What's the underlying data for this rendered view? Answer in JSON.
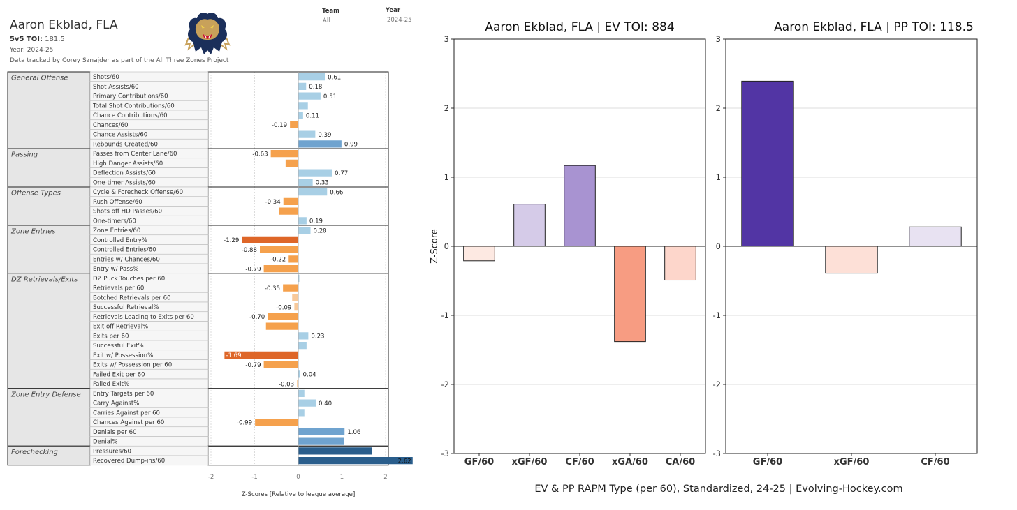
{
  "header": {
    "player_name": "Aaron Ekblad, FLA",
    "toi_label": "5v5 TOI:",
    "toi_value": "181.5",
    "year_line": "Year: 2024-25",
    "tracked_line": "Data tracked by Corey Sznajder as part of the All Three Zones Project",
    "team_filter_label": "Team",
    "team_filter_value": "All",
    "year_filter_label": "Year",
    "year_filter_value": "2024-25",
    "logo_icon": "florida-panthers-logo-icon"
  },
  "left_chart": {
    "type": "bar",
    "orientation": "horizontal",
    "xlabel": "Z-Scores [Relative to league average]",
    "xlim": [
      -2,
      2
    ],
    "xticks": [
      "-2",
      "-1",
      "0",
      "1",
      "2"
    ],
    "colors": {
      "positive_light": "#a8cfe5",
      "positive_mid": "#6fa3cf",
      "positive_dark": "#2a5e8c",
      "negative_light": "#f8c99a",
      "negative_mid": "#f5a14d",
      "negative_dark": "#de6628"
    },
    "groups": [
      {
        "name": "General Offense",
        "rows": [
          {
            "metric": "Shots/60",
            "value": 0.61,
            "label": "0.61"
          },
          {
            "metric": "Shot Assists/60",
            "value": 0.18,
            "label": "0.18"
          },
          {
            "metric": "Primary Contributions/60",
            "value": 0.51,
            "label": "0.51"
          },
          {
            "metric": "Total Shot Contributions/60",
            "value": 0.22,
            "label": ""
          },
          {
            "metric": "Chance Contributions/60",
            "value": 0.11,
            "label": "0.11"
          },
          {
            "metric": "Chances/60",
            "value": -0.19,
            "label": "-0.19"
          },
          {
            "metric": "Chance Assists/60",
            "value": 0.39,
            "label": "0.39"
          },
          {
            "metric": "Rebounds Created/60",
            "value": 0.99,
            "label": "0.99"
          }
        ]
      },
      {
        "name": "Passing",
        "rows": [
          {
            "metric": "Passes from Center Lane/60",
            "value": -0.63,
            "label": "-0.63"
          },
          {
            "metric": "High Danger Assists/60",
            "value": -0.29,
            "label": ""
          },
          {
            "metric": "Deflection Assists/60",
            "value": 0.77,
            "label": "0.77"
          },
          {
            "metric": "One-timer Assists/60",
            "value": 0.33,
            "label": "0.33"
          }
        ]
      },
      {
        "name": "Offense Types",
        "rows": [
          {
            "metric": "Cycle & Forecheck Offense/60",
            "value": 0.66,
            "label": "0.66"
          },
          {
            "metric": "Rush Offense/60",
            "value": -0.34,
            "label": "-0.34"
          },
          {
            "metric": "Shots off HD Passes/60",
            "value": -0.44,
            "label": ""
          },
          {
            "metric": "One-timers/60",
            "value": 0.19,
            "label": "0.19"
          }
        ]
      },
      {
        "name": "Zone Entries",
        "rows": [
          {
            "metric": "Zone Entries/60",
            "value": 0.28,
            "label": "0.28"
          },
          {
            "metric": "Controlled Entry%",
            "value": -1.29,
            "label": "-1.29"
          },
          {
            "metric": "Controlled Entries/60",
            "value": -0.88,
            "label": "-0.88"
          },
          {
            "metric": "Entries w/ Chances/60",
            "value": -0.22,
            "label": "-0.22"
          },
          {
            "metric": "Entry w/ Pass%",
            "value": -0.79,
            "label": "-0.79"
          }
        ]
      },
      {
        "name": "DZ Retrievals/Exits",
        "rows": [
          {
            "metric": "DZ Puck Touches per 60",
            "value": 0.0,
            "label": ""
          },
          {
            "metric": "Retrievals per 60",
            "value": -0.35,
            "label": "-0.35"
          },
          {
            "metric": "Botched Retrievals per 60",
            "value": -0.14,
            "label": ""
          },
          {
            "metric": "Successful Retrieval%",
            "value": -0.09,
            "label": "-0.09"
          },
          {
            "metric": "Retrievals Leading to Exits per 60",
            "value": -0.7,
            "label": "-0.70"
          },
          {
            "metric": "Exit off Retrieval%",
            "value": -0.74,
            "label": ""
          },
          {
            "metric": "Exits per 60",
            "value": 0.23,
            "label": "0.23"
          },
          {
            "metric": "Successful Exit%",
            "value": 0.19,
            "label": ""
          },
          {
            "metric": "Exit w/ Possession%",
            "value": -1.69,
            "label": "-1.69"
          },
          {
            "metric": "Exits w/ Possession per 60",
            "value": -0.79,
            "label": "-0.79"
          },
          {
            "metric": "Failed Exit per 60",
            "value": 0.04,
            "label": "0.04"
          },
          {
            "metric": "Failed Exit%",
            "value": -0.03,
            "label": "-0.03"
          }
        ]
      },
      {
        "name": "Zone Entry Defense",
        "rows": [
          {
            "metric": "Entry Targets per 60",
            "value": 0.14,
            "label": ""
          },
          {
            "metric": "Carry Against%",
            "value": 0.4,
            "label": "0.40"
          },
          {
            "metric": "Carries Against per 60",
            "value": 0.14,
            "label": ""
          },
          {
            "metric": "Chances Against per 60",
            "value": -0.99,
            "label": "-0.99"
          },
          {
            "metric": "Denials per 60",
            "value": 1.06,
            "label": "1.06"
          },
          {
            "metric": "Denial%",
            "value": 1.05,
            "label": ""
          }
        ]
      },
      {
        "name": "Forechecking",
        "rows": [
          {
            "metric": "Pressures/60",
            "value": 1.69,
            "label": ""
          },
          {
            "metric": "Recovered Dump-ins/60",
            "value": 2.62,
            "label": "2.62"
          }
        ]
      }
    ]
  },
  "chart_data": [
    {
      "type": "bar",
      "title": "Aaron Ekblad, FLA  |  EV TOI: 884",
      "ylabel": "Z-Score",
      "ylim": [
        -3,
        3
      ],
      "yticks": [
        "-3",
        "-2",
        "-1",
        "0",
        "1",
        "2",
        "3"
      ],
      "grid": true,
      "categories": [
        "GF/60",
        "xGF/60",
        "CF/60",
        "xGA/60",
        "CA/60"
      ],
      "values": [
        -0.21,
        0.61,
        1.17,
        -1.38,
        -0.49
      ],
      "colors": [
        "#fde9e2",
        "#d5cbe8",
        "#a893d1",
        "#f79c82",
        "#fdd6cb"
      ]
    },
    {
      "type": "bar",
      "title": "Aaron Ekblad, FLA  |  PP TOI: 118.5",
      "ylim": [
        -3,
        3
      ],
      "yticks": [
        "-3",
        "-2",
        "-1",
        "0",
        "1",
        "2",
        "3"
      ],
      "grid": true,
      "categories": [
        "GF/60",
        "xGF/60",
        "CF/60"
      ],
      "values": [
        2.39,
        -0.39,
        0.28
      ],
      "colors": [
        "#5235a4",
        "#fde0d7",
        "#e8e2f2"
      ]
    }
  ],
  "footer": {
    "caption": "EV & PP RAPM Type (per 60), Standardized, 24-25    |    Evolving-Hockey.com"
  }
}
